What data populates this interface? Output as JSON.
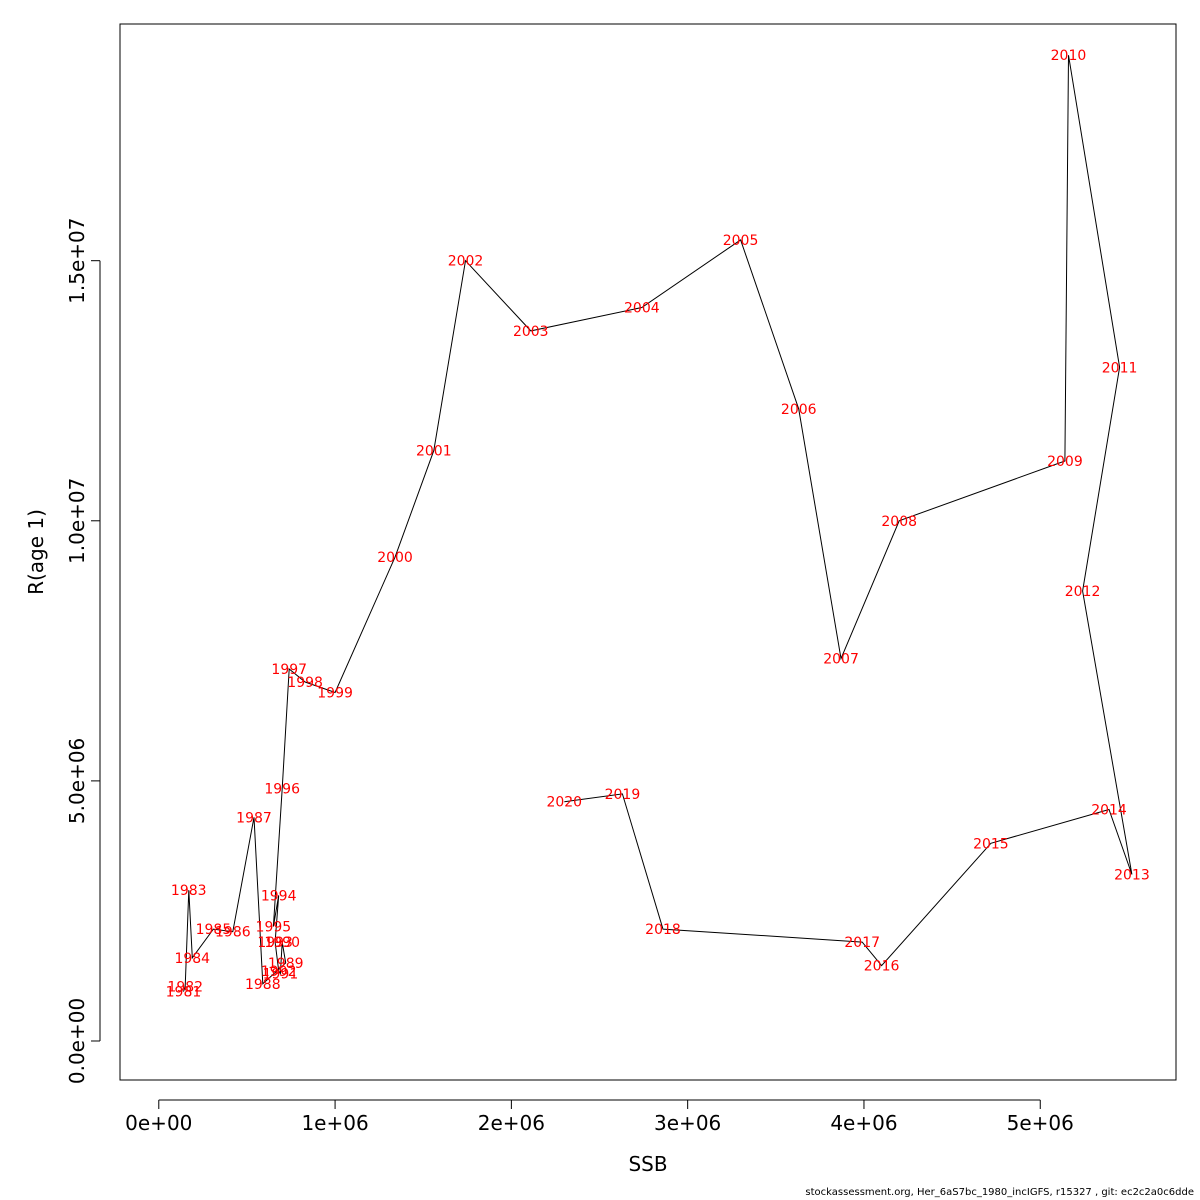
{
  "chart_data": {
    "type": "line",
    "title": "",
    "xlabel": "SSB",
    "ylabel": "R(age 1)",
    "xlim": [
      -220000,
      5770000
    ],
    "ylim": [
      -750000,
      19550000
    ],
    "xticks": [
      {
        "value": 0,
        "label": "0e+00"
      },
      {
        "value": 1000000,
        "label": "1e+06"
      },
      {
        "value": 2000000,
        "label": "2e+06"
      },
      {
        "value": 3000000,
        "label": "3e+06"
      },
      {
        "value": 4000000,
        "label": "4e+06"
      },
      {
        "value": 5000000,
        "label": "5e+06"
      }
    ],
    "yticks": [
      {
        "value": 0,
        "label": "0.0e+00"
      },
      {
        "value": 5000000,
        "label": "5.0e+06"
      },
      {
        "value": 10000000,
        "label": "1.0e+07"
      },
      {
        "value": 15000000,
        "label": "1.5e+07"
      }
    ],
    "label_color": "#ff0000",
    "line_color": "#000000",
    "points": [
      {
        "year": "1981",
        "ssb": 140000,
        "r": 950000
      },
      {
        "year": "1982",
        "ssb": 150000,
        "r": 1050000
      },
      {
        "year": "1983",
        "ssb": 170000,
        "r": 2900000
      },
      {
        "year": "1984",
        "ssb": 190000,
        "r": 1600000
      },
      {
        "year": "1985",
        "ssb": 310000,
        "r": 2150000
      },
      {
        "year": "1986",
        "ssb": 420000,
        "r": 2100000
      },
      {
        "year": "1987",
        "ssb": 540000,
        "r": 4300000
      },
      {
        "year": "1988",
        "ssb": 590000,
        "r": 1100000
      },
      {
        "year": "1989",
        "ssb": 720000,
        "r": 1500000
      },
      {
        "year": "1990",
        "ssb": 700000,
        "r": 1900000
      },
      {
        "year": "1991",
        "ssb": 690000,
        "r": 1300000
      },
      {
        "year": "1992",
        "ssb": 680000,
        "r": 1350000
      },
      {
        "year": "1993",
        "ssb": 660000,
        "r": 1900000
      },
      {
        "year": "1994",
        "ssb": 680000,
        "r": 2800000
      },
      {
        "year": "1995",
        "ssb": 650000,
        "r": 2200000
      },
      {
        "year": "1996",
        "ssb": 700000,
        "r": 4850000
      },
      {
        "year": "1997",
        "ssb": 740000,
        "r": 7150000
      },
      {
        "year": "1998",
        "ssb": 830000,
        "r": 6900000
      },
      {
        "year": "1999",
        "ssb": 1000000,
        "r": 6700000
      },
      {
        "year": "2000",
        "ssb": 1340000,
        "r": 9300000
      },
      {
        "year": "2001",
        "ssb": 1560000,
        "r": 11350000
      },
      {
        "year": "2002",
        "ssb": 1740000,
        "r": 15000000
      },
      {
        "year": "2003",
        "ssb": 2110000,
        "r": 13650000
      },
      {
        "year": "2004",
        "ssb": 2740000,
        "r": 14100000
      },
      {
        "year": "2005",
        "ssb": 3300000,
        "r": 15400000
      },
      {
        "year": "2006",
        "ssb": 3630000,
        "r": 12150000
      },
      {
        "year": "2007",
        "ssb": 3870000,
        "r": 7350000
      },
      {
        "year": "2008",
        "ssb": 4200000,
        "r": 10000000
      },
      {
        "year": "2009",
        "ssb": 5140000,
        "r": 11150000
      },
      {
        "year": "2010",
        "ssb": 5160000,
        "r": 18950000
      },
      {
        "year": "2011",
        "ssb": 5450000,
        "r": 12950000
      },
      {
        "year": "2012",
        "ssb": 5240000,
        "r": 8650000
      },
      {
        "year": "2013",
        "ssb": 5520000,
        "r": 3200000
      },
      {
        "year": "2014",
        "ssb": 5390000,
        "r": 4450000
      },
      {
        "year": "2015",
        "ssb": 4720000,
        "r": 3800000
      },
      {
        "year": "2016",
        "ssb": 4100000,
        "r": 1450000
      },
      {
        "year": "2017",
        "ssb": 3990000,
        "r": 1900000
      },
      {
        "year": "2018",
        "ssb": 2860000,
        "r": 2150000
      },
      {
        "year": "2019",
        "ssb": 2630000,
        "r": 4750000
      },
      {
        "year": "2020",
        "ssb": 2300000,
        "r": 4600000
      }
    ]
  },
  "footer": "stockassessment.org, Her_6aS7bc_1980_incIGFS, r15327 , git: ec2c2a0c6dde"
}
